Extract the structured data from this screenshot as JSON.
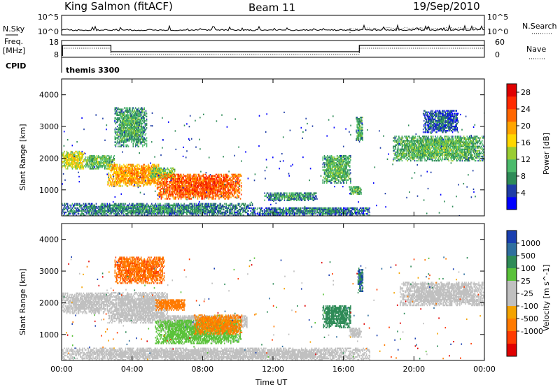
{
  "header": {
    "site": "King Salmon (fitACF)",
    "beam": "Beam 11",
    "date": "19/Sep/2010"
  },
  "noise_panel": {
    "left_label": "N.Sky",
    "right_label": "N.Search",
    "left_ticks": [
      "10^5",
      "10^0"
    ],
    "right_ticks": [
      "10^5",
      "10^0"
    ]
  },
  "freq_panel": {
    "left_label_line1": "Freq.",
    "left_label_line2": "[MHz]",
    "left_ticks": [
      "18",
      "8"
    ],
    "right_label": "Nave",
    "right_ticks": [
      "60",
      "0"
    ]
  },
  "cpid": {
    "label": "CPID",
    "program": "themis 3300"
  },
  "colors": {
    "power": [
      "#0000ff",
      "#1f3da6",
      "#2e8b57",
      "#4cbb6c",
      "#9acd32",
      "#ffd700",
      "#ffa500",
      "#ff6600",
      "#ff2a00",
      "#e00000"
    ],
    "velocity": [
      "#1a3fb0",
      "#2f6f9f",
      "#2e8b57",
      "#5ac23a",
      "#c0c0c0",
      "#c0c0c0",
      "#f4a300",
      "#ff7a00",
      "#ff3b00",
      "#e00000"
    ],
    "ground_scatter": "#c0c0c0"
  },
  "chart_data": [
    {
      "type": "heatmap",
      "title": "Power",
      "ylabel": "Slant Range [km]",
      "xlabel": "",
      "xlim": [
        0,
        24
      ],
      "ylim": [
        180,
        4500
      ],
      "xticks": [
        "00:00",
        "04:00",
        "08:00",
        "12:00",
        "16:00",
        "20:00",
        "00:00"
      ],
      "yticks": [
        1000,
        2000,
        3000,
        4000
      ],
      "colorbar": {
        "label": "Power [dB]",
        "range": [
          0,
          30
        ],
        "ticks": [
          4,
          8,
          12,
          16,
          20,
          24,
          28
        ]
      },
      "regions": [
        {
          "t": [
            0.0,
            1.3
          ],
          "range": [
            1650,
            2200
          ],
          "value": 14
        },
        {
          "t": [
            1.3,
            3.0
          ],
          "range": [
            1650,
            2100
          ],
          "value": 10
        },
        {
          "t": [
            2.6,
            5.6
          ],
          "range": [
            1100,
            1800
          ],
          "value": 18
        },
        {
          "t": [
            3.0,
            4.8
          ],
          "range": [
            2350,
            3600
          ],
          "value": 8
        },
        {
          "t": [
            5.0,
            6.4
          ],
          "range": [
            1350,
            1700
          ],
          "value": 11
        },
        {
          "t": [
            5.4,
            10.2
          ],
          "range": [
            700,
            1500
          ],
          "value": 22
        },
        {
          "t": [
            0.0,
            10.8
          ],
          "range": [
            180,
            550
          ],
          "value": 6
        },
        {
          "t": [
            10.8,
            17.5
          ],
          "range": [
            180,
            450
          ],
          "value": 5
        },
        {
          "t": [
            11.5,
            14.5
          ],
          "range": [
            650,
            900
          ],
          "value": 7
        },
        {
          "t": [
            14.8,
            16.4
          ],
          "range": [
            1200,
            2100
          ],
          "value": 9
        },
        {
          "t": [
            16.3,
            17.0
          ],
          "range": [
            850,
            1100
          ],
          "value": 9
        },
        {
          "t": [
            16.7,
            17.1
          ],
          "range": [
            2500,
            3300
          ],
          "value": 8
        },
        {
          "t": [
            18.8,
            24.0
          ],
          "range": [
            1900,
            2700
          ],
          "value": 9
        },
        {
          "t": [
            20.5,
            22.5
          ],
          "range": [
            2800,
            3500
          ],
          "value": 4
        }
      ]
    },
    {
      "type": "heatmap",
      "title": "Velocity",
      "ylabel": "Slant Range [km]",
      "xlabel": "Time UT",
      "xlim": [
        0,
        24
      ],
      "ylim": [
        180,
        4500
      ],
      "xticks": [
        "00:00",
        "04:00",
        "08:00",
        "12:00",
        "16:00",
        "20:00",
        "00:00"
      ],
      "yticks": [
        1000,
        2000,
        3000,
        4000
      ],
      "colorbar": {
        "label": "Velocity [m s^-1]",
        "ticks": [
          "1000",
          "500",
          "100",
          "25",
          "-25",
          "-100",
          "-500",
          "-1000"
        ]
      },
      "regions": [
        {
          "t": [
            0.0,
            2.8
          ],
          "range": [
            1650,
            2300
          ],
          "value": 0,
          "ground_scatter": true
        },
        {
          "t": [
            2.6,
            6.0
          ],
          "range": [
            1350,
            2300
          ],
          "value": 0,
          "ground_scatter": true
        },
        {
          "t": [
            5.5,
            10.5
          ],
          "range": [
            1200,
            1600
          ],
          "value": 0,
          "ground_scatter": true
        },
        {
          "t": [
            3.0,
            5.8
          ],
          "range": [
            2600,
            3450
          ],
          "value": -400
        },
        {
          "t": [
            5.3,
            7.0
          ],
          "range": [
            1750,
            2100
          ],
          "value": -300
        },
        {
          "t": [
            5.3,
            10.2
          ],
          "range": [
            700,
            1450
          ],
          "value": 60
        },
        {
          "t": [
            7.5,
            10.2
          ],
          "range": [
            1000,
            1600
          ],
          "value": -150
        },
        {
          "t": [
            0.0,
            17.5
          ],
          "range": [
            180,
            550
          ],
          "value": 0,
          "ground_scatter": true
        },
        {
          "t": [
            14.8,
            16.4
          ],
          "range": [
            1200,
            1900
          ],
          "value": 300
        },
        {
          "t": [
            16.3,
            17.0
          ],
          "range": [
            900,
            1200
          ],
          "value": 0,
          "ground_scatter": true
        },
        {
          "t": [
            16.8,
            17.1
          ],
          "range": [
            2300,
            3100
          ],
          "value": 500
        },
        {
          "t": [
            19.2,
            24.0
          ],
          "range": [
            1900,
            2650
          ],
          "value": 0,
          "ground_scatter": true
        }
      ]
    }
  ]
}
